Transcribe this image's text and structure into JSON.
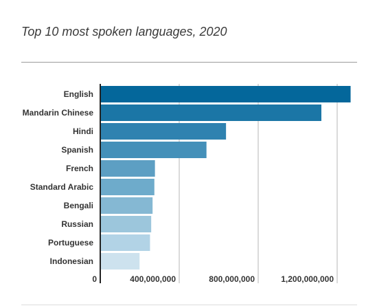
{
  "chart_data": {
    "type": "bar",
    "orientation": "horizontal",
    "title": "Top 10 most spoken languages, 2020",
    "xlabel": "",
    "ylabel": "",
    "categories": [
      "English",
      "Mandarin Chinese",
      "Hindi",
      "Spanish",
      "French",
      "Standard Arabic",
      "Bengali",
      "Russian",
      "Portuguese",
      "Indonesian"
    ],
    "values": [
      1268000000,
      1120000000,
      637000000,
      538000000,
      277000000,
      274000000,
      265000000,
      258000000,
      252000000,
      199000000
    ],
    "xlim": [
      0,
      1300000000
    ],
    "xticks": [
      0,
      400000000,
      800000000,
      1200000000
    ],
    "xtick_labels": [
      "0",
      "400,000,000",
      "800,000,000",
      "1,200,000,000"
    ],
    "grid": true,
    "legend": "none",
    "bar_colors": [
      "#04679b",
      "#1b76a6",
      "#2f82b0",
      "#4490b9",
      "#5d9fc3",
      "#6eabcb",
      "#85b8d3",
      "#9cc6dc",
      "#b2d3e6",
      "#cde2ee"
    ]
  }
}
